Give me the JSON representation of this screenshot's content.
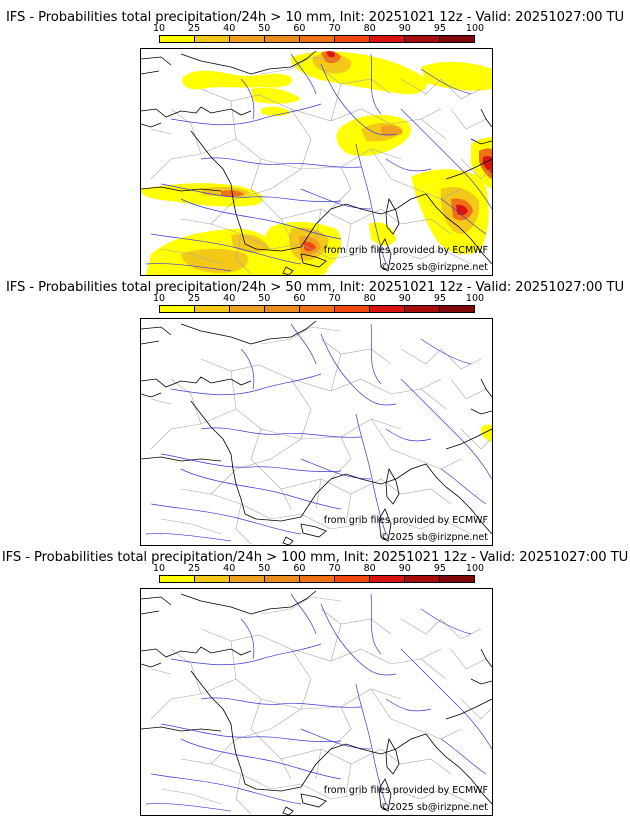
{
  "legend": {
    "labels": [
      "10",
      "25",
      "40",
      "50",
      "60",
      "70",
      "80",
      "90",
      "95",
      "100"
    ],
    "colors": [
      "#ffff00",
      "#f4c818",
      "#f0a020",
      "#ec8c1c",
      "#f07014",
      "#f24810",
      "#d81410",
      "#a80c0c",
      "#800808",
      "#580404"
    ]
  },
  "panels": [
    {
      "title": "IFS - Probabilities total precipitation/24h > 10 mm, Init: 20251021 12z - Valid: 20251027:00 TU",
      "threshold_mm": 10,
      "source_text": "from grib files provided by ECMWF",
      "copyright_text": "©2025 sb@irizpne.net"
    },
    {
      "title": "IFS - Probabilities total precipitation/24h > 50 mm, Init: 20251021 12z - Valid: 20251027:00 TU",
      "threshold_mm": 50,
      "source_text": "from grib files provided by ECMWF",
      "copyright_text": "©2025 sb@irizpne.net"
    },
    {
      "title": "IFS - Probabilities total precipitation/24h > 100 mm, Init: 20251021 12z - Valid: 20251027:00 TU",
      "threshold_mm": 100,
      "source_text": "from grib files provided by ECMWF",
      "copyright_text": "©2025 sb@irizpne.net"
    }
  ],
  "map_colors": {
    "coast": "#000000",
    "rivers": "#3a3adc",
    "borders": "#a0a0a0"
  }
}
